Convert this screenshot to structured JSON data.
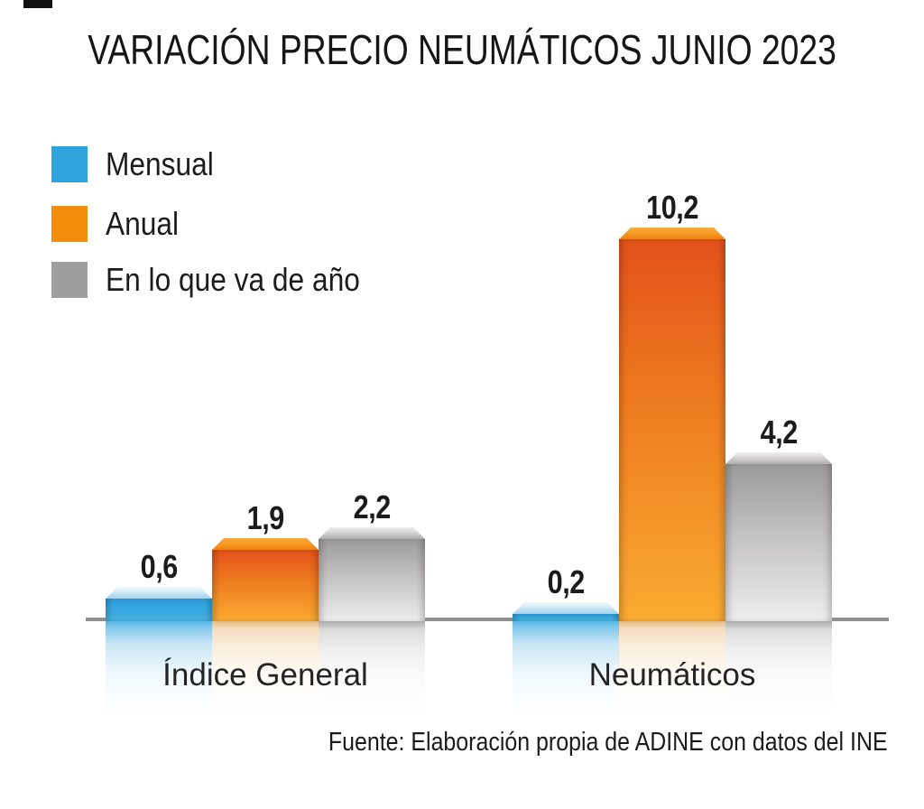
{
  "title": "VARIACIÓN PRECIO NEUMÁTICOS JUNIO 2023",
  "legend": {
    "items": [
      {
        "label": "Mensual",
        "color": "#2fa3dc"
      },
      {
        "label": "Anual",
        "color": "#f28e0c"
      },
      {
        "label": "En lo que va de año",
        "color": "#9e9e9e"
      }
    ]
  },
  "footer": {
    "source": "Fuente: Elaboración propia de ADINE con datos del INE"
  },
  "chart_data": {
    "type": "bar",
    "title": "VARIACIÓN PRECIO NEUMÁTICOS JUNIO 2023",
    "categories": [
      "Índice General",
      "Neumáticos"
    ],
    "series": [
      {
        "name": "Mensual",
        "color": "#2fa3dc",
        "values": [
          0.6,
          0.2
        ],
        "labels": [
          "0,6",
          "0,2"
        ]
      },
      {
        "name": "Anual",
        "color": "#f28e0c",
        "values": [
          1.9,
          10.2
        ],
        "labels": [
          "1,9",
          "10,2"
        ]
      },
      {
        "name": "En lo que va de año",
        "color": "#9e9e9e",
        "values": [
          2.2,
          4.2
        ],
        "labels": [
          "2,2",
          "4,2"
        ]
      }
    ],
    "xlabel": "",
    "ylabel": "",
    "ylim": [
      0,
      10.2
    ],
    "grid": false,
    "axes_ticks_visible": false,
    "value_format": "decimal-comma",
    "legend_position": "top-left",
    "baseline_color": "#8f8f8f",
    "bar_style": "3d-beveled-with-floor-reflection"
  }
}
